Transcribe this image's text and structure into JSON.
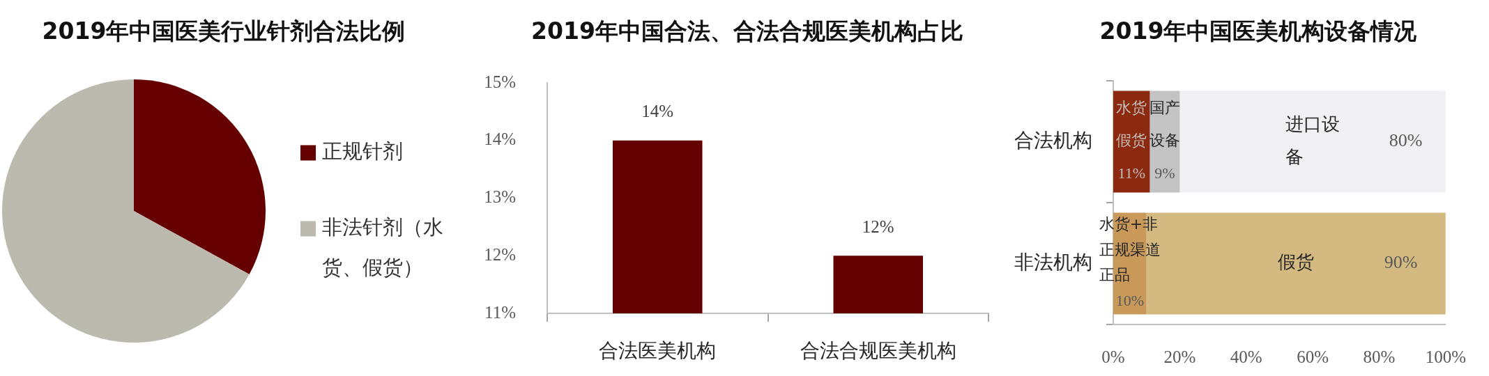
{
  "chart_data": [
    {
      "type": "pie",
      "title": "2019年中国医美行业针剂合法比例",
      "categories": [
        "正规针剂",
        "非法针剂（水货、假货）"
      ],
      "values": [
        33,
        67
      ],
      "colors": [
        "#660000",
        "#bcbaae"
      ],
      "legend": "right"
    },
    {
      "type": "bar",
      "title": "2019年中国合法、合法合规医美机构占比",
      "categories": [
        "合法医美机构",
        "合法合规医美机构"
      ],
      "values": [
        14,
        12
      ],
      "color": "#640000",
      "value_labels": [
        "14%",
        "12%"
      ],
      "ylim": [
        11,
        15
      ],
      "yticks": [
        {
          "value": 11,
          "label": "11%"
        },
        {
          "value": 12,
          "label": "12%"
        },
        {
          "value": 13,
          "label": "13%"
        },
        {
          "value": 14,
          "label": "14%"
        },
        {
          "value": 15,
          "label": "15%"
        }
      ]
    },
    {
      "type": "bar",
      "title": "2019年中国医美机构设备情况",
      "orientation": "horizontal",
      "stacked": true,
      "categories": [
        "合法机构",
        "非法机构"
      ],
      "series": [
        {
          "name": "水货假货",
          "color": "#8c2a10",
          "values": [
            11,
            null
          ],
          "value_labels": [
            "11%",
            null
          ]
        },
        {
          "name": "国产设备",
          "color": "#c3c3c3",
          "values": [
            9,
            null
          ],
          "value_labels": [
            "9%",
            null
          ]
        },
        {
          "name": "进口设备",
          "color": "#f1f0f4",
          "values": [
            80,
            null
          ],
          "value_labels": [
            "80%",
            null
          ]
        },
        {
          "name": "水货+非正规渠道正品",
          "color": "#c9995a",
          "values": [
            null,
            10
          ],
          "value_labels": [
            null,
            "10%"
          ]
        },
        {
          "name": "假货",
          "color": "#d4ba80",
          "values": [
            null,
            90
          ],
          "value_labels": [
            null,
            "90%"
          ]
        }
      ],
      "xlim": [
        0,
        100
      ],
      "xticks": [
        {
          "value": 0,
          "label": "0%"
        },
        {
          "value": 20,
          "label": "20%"
        },
        {
          "value": 40,
          "label": "40%"
        },
        {
          "value": 60,
          "label": "60%"
        },
        {
          "value": 80,
          "label": "80%"
        },
        {
          "value": 100,
          "label": "100%"
        }
      ]
    }
  ]
}
